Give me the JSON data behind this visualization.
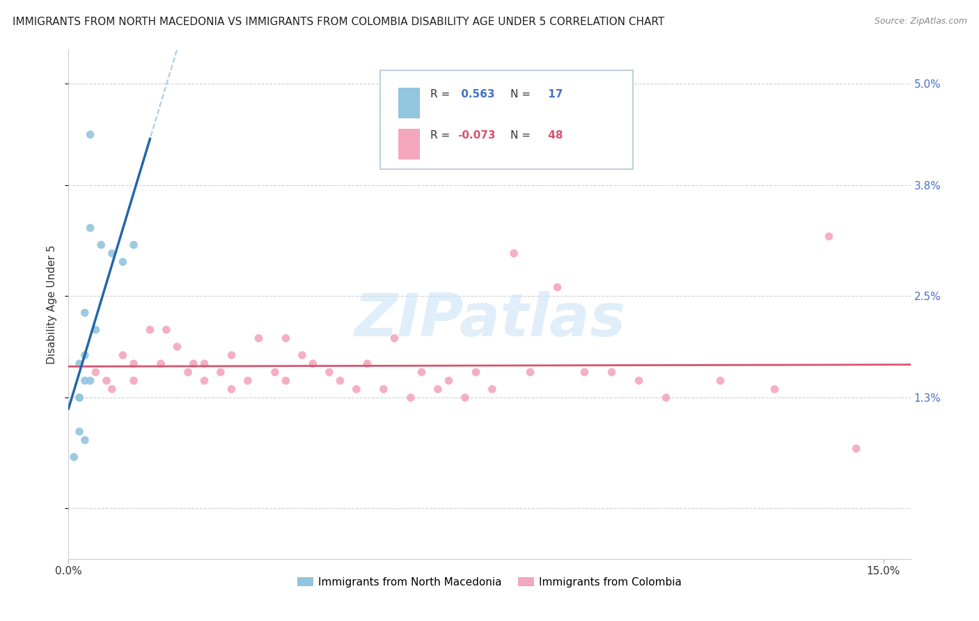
{
  "title": "IMMIGRANTS FROM NORTH MACEDONIA VS IMMIGRANTS FROM COLOMBIA DISABILITY AGE UNDER 5 CORRELATION CHART",
  "source": "Source: ZipAtlas.com",
  "ylabel": "Disability Age Under 5",
  "xlim": [
    0.0,
    0.155
  ],
  "ylim": [
    -0.006,
    0.054
  ],
  "legend_label1": "Immigrants from North Macedonia",
  "legend_label2": "Immigrants from Colombia",
  "R1": 0.563,
  "N1": 17,
  "R2": -0.073,
  "N2": 48,
  "color1": "#92c5de",
  "color2": "#f4a6bc",
  "trendline1_color": "#2166ac",
  "trendline2_color": "#d6546e",
  "watermark": "ZIPatlas",
  "yticks": [
    0.0,
    0.013,
    0.025,
    0.038,
    0.05
  ],
  "ytick_labels": [
    "",
    "1.3%",
    "2.5%",
    "3.8%",
    "5.0%"
  ],
  "xticks": [
    0.0,
    0.15
  ],
  "xtick_labels": [
    "0.0%",
    "15.0%"
  ],
  "scatter1_x": [
    0.004,
    0.004,
    0.006,
    0.008,
    0.01,
    0.012,
    0.003,
    0.005,
    0.003,
    0.002,
    0.003,
    0.004,
    0.002,
    0.002,
    0.002,
    0.003,
    0.001
  ],
  "scatter1_y": [
    0.044,
    0.033,
    0.031,
    0.03,
    0.029,
    0.031,
    0.023,
    0.021,
    0.018,
    0.017,
    0.015,
    0.015,
    0.013,
    0.013,
    0.009,
    0.008,
    0.006
  ],
  "scatter2_x": [
    0.005,
    0.007,
    0.008,
    0.01,
    0.012,
    0.012,
    0.015,
    0.017,
    0.018,
    0.02,
    0.022,
    0.023,
    0.025,
    0.025,
    0.028,
    0.03,
    0.03,
    0.033,
    0.035,
    0.038,
    0.04,
    0.04,
    0.043,
    0.045,
    0.048,
    0.05,
    0.053,
    0.055,
    0.058,
    0.06,
    0.063,
    0.065,
    0.068,
    0.07,
    0.073,
    0.075,
    0.078,
    0.082,
    0.085,
    0.09,
    0.095,
    0.1,
    0.105,
    0.11,
    0.12,
    0.13,
    0.14,
    0.145
  ],
  "scatter2_y": [
    0.016,
    0.015,
    0.014,
    0.018,
    0.017,
    0.015,
    0.021,
    0.017,
    0.021,
    0.019,
    0.016,
    0.017,
    0.015,
    0.017,
    0.016,
    0.018,
    0.014,
    0.015,
    0.02,
    0.016,
    0.02,
    0.015,
    0.018,
    0.017,
    0.016,
    0.015,
    0.014,
    0.017,
    0.014,
    0.02,
    0.013,
    0.016,
    0.014,
    0.015,
    0.013,
    0.016,
    0.014,
    0.03,
    0.016,
    0.026,
    0.016,
    0.016,
    0.015,
    0.013,
    0.015,
    0.014,
    0.032,
    0.007
  ]
}
